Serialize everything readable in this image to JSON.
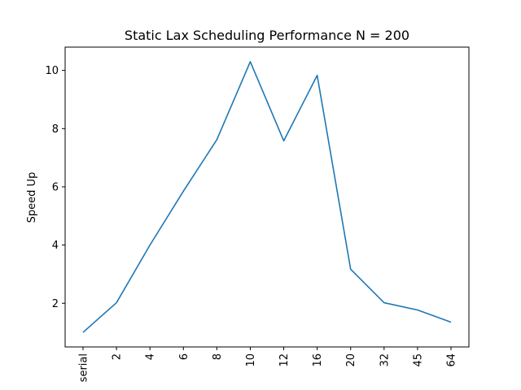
{
  "chart_data": {
    "type": "line",
    "title": "Static Lax Scheduling Performance N = 200",
    "xlabel": "",
    "ylabel": "Speed Up",
    "categories": [
      "serial",
      "2",
      "4",
      "6",
      "8",
      "10",
      "12",
      "16",
      "20",
      "32",
      "45",
      "64"
    ],
    "series": [
      {
        "values": [
          1.0,
          2.02,
          4.0,
          5.85,
          7.62,
          10.3,
          7.58,
          9.83,
          3.17,
          2.02,
          1.77,
          1.35
        ],
        "color": "#1f77b4"
      }
    ],
    "yticks": [
      2,
      4,
      6,
      8,
      10
    ],
    "ylim": [
      0.5,
      10.8
    ],
    "grid": false,
    "legend": "none"
  }
}
